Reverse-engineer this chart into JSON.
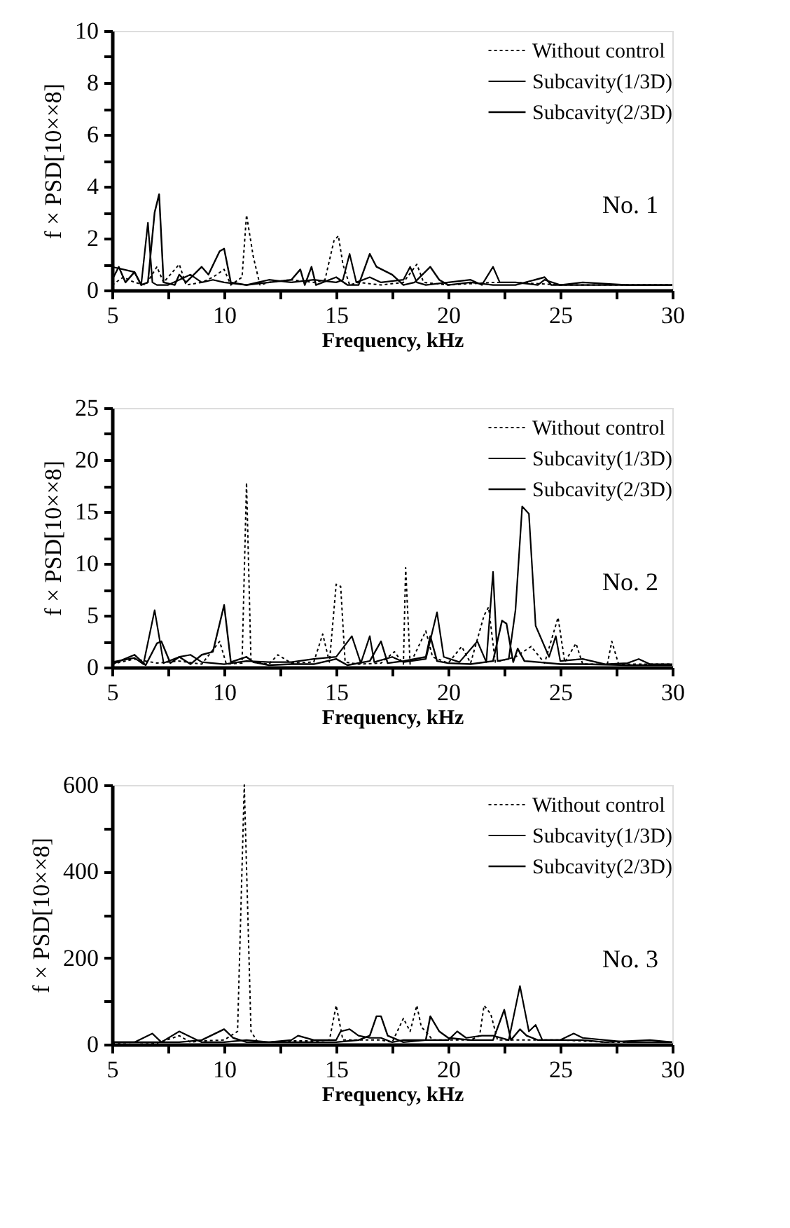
{
  "chart_data": [
    {
      "type": "line",
      "xlabel": "Frequency, kHz",
      "ylabel": "f × PSD[10××8]",
      "annotations": [
        "No. 1"
      ],
      "legend": "top right",
      "grid": false,
      "xlim": [
        5,
        30
      ],
      "xticks": [
        5,
        {
          "value": 7.5,
          "label": null
        },
        10,
        {
          "value": 12.5,
          "label": null
        },
        15,
        {
          "value": 17.5,
          "label": null
        },
        20,
        {
          "value": 22.5,
          "label": null
        },
        25,
        {
          "value": 27.5,
          "label": null
        },
        30
      ],
      "ylim": [
        0,
        10
      ],
      "yticks": [
        0,
        {
          "value": 1,
          "label": null
        },
        2,
        {
          "value": 3,
          "label": null
        },
        4,
        {
          "value": 5,
          "label": null
        },
        6,
        {
          "value": 7,
          "label": null
        },
        8,
        {
          "value": 9,
          "label": null
        },
        10
      ],
      "series": [
        {
          "name": "Without control",
          "color": "#000000",
          "line_style": "dotted",
          "x": [
            5,
            5.5,
            6,
            6.5,
            7,
            7.3,
            8,
            8.3,
            9,
            9.5,
            10,
            10.3,
            10.8,
            11,
            11.3,
            11.6,
            12,
            13,
            14,
            14.5,
            14.9,
            15.1,
            15.3,
            15.6,
            16,
            17,
            18,
            18.6,
            18.9,
            20,
            22,
            23,
            25,
            27,
            30
          ],
          "values": [
            0.2,
            0.5,
            0.3,
            0.2,
            0.9,
            0.3,
            1.0,
            0.2,
            0.3,
            0.5,
            0.8,
            0.2,
            0.5,
            2.9,
            1.3,
            0.2,
            0.3,
            0.4,
            0.3,
            0.4,
            1.9,
            2.1,
            1.0,
            0.2,
            0.3,
            0.2,
            0.3,
            1.0,
            0.3,
            0.2,
            0.3,
            0.3,
            0.2,
            0.2,
            0.2
          ]
        },
        {
          "name": "Subcavity(1/3D)",
          "color": "#000000",
          "line_style": "solid",
          "x": [
            5,
            5.5,
            6,
            6.3,
            6.6,
            6.8,
            7,
            7.5,
            8,
            8.5,
            9,
            9.5,
            10,
            11,
            11.5,
            12,
            13,
            14,
            15,
            15.3,
            15.6,
            15.9,
            16.5,
            17,
            18,
            18.3,
            18.6,
            19,
            20,
            21,
            21.5,
            22,
            22.3,
            23,
            24,
            24.3,
            25,
            26,
            28,
            30
          ],
          "values": [
            0.9,
            0.8,
            0.7,
            0.2,
            2.6,
            0.3,
            0.2,
            0.2,
            0.4,
            0.6,
            0.3,
            0.4,
            0.3,
            0.2,
            0.3,
            0.4,
            0.3,
            0.4,
            0.3,
            0.4,
            1.4,
            0.3,
            0.5,
            0.3,
            0.4,
            0.9,
            0.3,
            0.2,
            0.3,
            0.4,
            0.2,
            0.9,
            0.3,
            0.3,
            0.2,
            0.4,
            0.2,
            0.3,
            0.2,
            0.2
          ]
        },
        {
          "name": "Subcavity(2/3D)",
          "color": "#000000",
          "line_style": "solid",
          "x": [
            5,
            5.3,
            5.6,
            6,
            6.3,
            6.6,
            6.9,
            7.1,
            7.3,
            7.8,
            8,
            8.3,
            9,
            9.3,
            9.8,
            10,
            10.3,
            11,
            12,
            13,
            13.4,
            13.6,
            13.9,
            14.1,
            15,
            15.5,
            16,
            16.5,
            16.8,
            17.5,
            18,
            18.5,
            19.2,
            19.6,
            20,
            21,
            22,
            23,
            24.3,
            24.6,
            26,
            28,
            30
          ],
          "values": [
            0.4,
            0.9,
            0.3,
            0.7,
            0.2,
            0.3,
            3.0,
            3.7,
            0.3,
            0.2,
            0.6,
            0.3,
            0.9,
            0.6,
            1.5,
            1.6,
            0.3,
            0.2,
            0.3,
            0.4,
            0.8,
            0.2,
            0.9,
            0.2,
            0.5,
            0.2,
            0.2,
            1.4,
            0.9,
            0.6,
            0.2,
            0.3,
            0.9,
            0.4,
            0.2,
            0.3,
            0.2,
            0.2,
            0.5,
            0.2,
            0.2,
            0.2,
            0.2
          ]
        }
      ]
    },
    {
      "type": "line",
      "xlabel": "Frequency, kHz",
      "ylabel": "f × PSD[10××8]",
      "annotations": [
        "No. 2"
      ],
      "legend": "top right",
      "grid": false,
      "xlim": [
        5,
        30
      ],
      "xticks": [
        5,
        {
          "value": 7.5,
          "label": null
        },
        10,
        {
          "value": 12.5,
          "label": null
        },
        15,
        {
          "value": 17.5,
          "label": null
        },
        20,
        {
          "value": 22.5,
          "label": null
        },
        25,
        {
          "value": 27.5,
          "label": null
        },
        30
      ],
      "ylim": [
        0,
        25
      ],
      "yticks": [
        0,
        {
          "value": 2.5,
          "label": null
        },
        5,
        {
          "value": 7.5,
          "label": null
        },
        10,
        {
          "value": 12.5,
          "label": null
        },
        15,
        {
          "value": 17.5,
          "label": null
        },
        20,
        {
          "value": 22.5,
          "label": null
        },
        25
      ],
      "series": [
        {
          "name": "Without control",
          "color": "#000000",
          "line_style": "dotted",
          "x": [
            5,
            6,
            7,
            8,
            9,
            9.8,
            10.1,
            10.8,
            11,
            11.2,
            12,
            12.4,
            13,
            14,
            14.4,
            14.7,
            15,
            15.2,
            15.4,
            16,
            17,
            17.6,
            18,
            18.1,
            18.3,
            19,
            19.3,
            20,
            20.6,
            21,
            21.6,
            21.8,
            22.1,
            23,
            23.7,
            24.3,
            24.9,
            25.2,
            25.7,
            26,
            27.1,
            27.3,
            27.6,
            29,
            30
          ],
          "values": [
            0.3,
            0.8,
            0.4,
            0.6,
            0.3,
            2.5,
            0.3,
            0.4,
            17.8,
            0.5,
            0.3,
            1.2,
            0.4,
            0.5,
            3.2,
            0.5,
            8.0,
            7.8,
            0.5,
            0.3,
            0.4,
            1.5,
            0.3,
            9.6,
            0.3,
            3.5,
            1.0,
            0.4,
            2.0,
            0.4,
            5.0,
            5.8,
            0.5,
            1.0,
            2.0,
            0.4,
            4.8,
            0.5,
            2.3,
            0.3,
            0.3,
            2.5,
            0.3,
            0.3,
            0.3
          ]
        },
        {
          "name": "Subcavity(1/3D)",
          "color": "#000000",
          "line_style": "solid",
          "x": [
            5,
            6,
            6.4,
            6.9,
            7.3,
            8,
            8.5,
            9,
            10,
            11,
            12,
            13,
            14,
            15,
            15.7,
            16.1,
            16.5,
            16.7,
            17.5,
            18,
            19,
            19.5,
            19.8,
            20.5,
            21.3,
            21.7,
            22,
            22.2,
            22.7,
            23,
            23.3,
            23.6,
            23.9,
            24.5,
            24.8,
            25,
            26,
            27,
            28,
            28.5,
            29,
            30
          ],
          "values": [
            0.5,
            0.9,
            0.3,
            5.5,
            0.4,
            1.0,
            1.2,
            0.5,
            0.3,
            0.6,
            0.5,
            0.5,
            0.8,
            1.0,
            3.0,
            0.4,
            3.0,
            0.5,
            1.0,
            0.5,
            0.8,
            5.3,
            1.0,
            0.5,
            2.5,
            0.5,
            9.2,
            0.6,
            0.8,
            5.5,
            15.5,
            14.8,
            4.0,
            1.0,
            3.0,
            0.6,
            0.8,
            0.3,
            0.4,
            0.8,
            0.3,
            0.3
          ]
        },
        {
          "name": "Subcavity(2/3D)",
          "color": "#000000",
          "line_style": "solid",
          "x": [
            5,
            6,
            6.5,
            7,
            7.2,
            7.6,
            8,
            8.5,
            9,
            9.5,
            10,
            10.3,
            11,
            11.3,
            12,
            13,
            14,
            15,
            15.5,
            16.5,
            17,
            17.3,
            18,
            19,
            19.2,
            19.5,
            20,
            21,
            22,
            22.4,
            22.6,
            22.9,
            23.1,
            23.4,
            24,
            25,
            26,
            28,
            30
          ],
          "values": [
            0.3,
            1.2,
            0.2,
            2.3,
            2.5,
            0.4,
            1.0,
            0.3,
            1.2,
            1.5,
            6.0,
            0.5,
            1.0,
            0.5,
            0.2,
            0.3,
            0.3,
            0.8,
            0.2,
            0.6,
            2.5,
            0.4,
            0.6,
            1.0,
            3.0,
            0.6,
            0.4,
            0.3,
            0.6,
            4.5,
            4.2,
            0.5,
            1.8,
            0.6,
            0.5,
            0.3,
            0.3,
            0.2,
            0.2
          ]
        }
      ]
    },
    {
      "type": "line",
      "xlabel": "Frequency, kHz",
      "ylabel": "f × PSD[10××8]",
      "annotations": [
        "No. 3"
      ],
      "legend": "top right",
      "grid": false,
      "xlim": [
        5,
        30
      ],
      "xticks": [
        5,
        {
          "value": 7.5,
          "label": null
        },
        10,
        {
          "value": 12.5,
          "label": null
        },
        15,
        {
          "value": 17.5,
          "label": null
        },
        20,
        {
          "value": 22.5,
          "label": null
        },
        25,
        {
          "value": 27.5,
          "label": null
        },
        30
      ],
      "ylim": [
        0,
        600
      ],
      "yticks": [
        0,
        {
          "value": 100,
          "label": null
        },
        200,
        {
          "value": 300,
          "label": null
        },
        400,
        {
          "value": 500,
          "label": null
        },
        600
      ],
      "series": [
        {
          "name": "Without control",
          "color": "#000000",
          "line_style": "dotted",
          "x": [
            5,
            6,
            7,
            8,
            8.5,
            9,
            10,
            10.6,
            10.9,
            11.2,
            11.5,
            12,
            13,
            14,
            14.7,
            15,
            15.3,
            16,
            17,
            17.5,
            18,
            18.3,
            18.6,
            18.8,
            19,
            19.3,
            20,
            21,
            21.4,
            21.6,
            21.9,
            22.2,
            23,
            24,
            25,
            26,
            27,
            28,
            30
          ],
          "values": [
            3,
            5,
            3,
            20,
            5,
            8,
            10,
            30,
            600,
            30,
            5,
            5,
            8,
            8,
            10,
            90,
            10,
            10,
            10,
            5,
            60,
            30,
            90,
            40,
            30,
            10,
            10,
            10,
            20,
            90,
            70,
            10,
            10,
            10,
            10,
            8,
            5,
            5,
            5
          ]
        },
        {
          "name": "Subcavity(1/3D)",
          "color": "#000000",
          "line_style": "solid",
          "x": [
            5,
            6,
            6.8,
            7.2,
            8,
            8.4,
            9,
            10,
            11,
            12,
            13,
            13.3,
            14,
            15,
            15.2,
            15.6,
            16,
            16.5,
            17,
            17.5,
            18,
            19,
            20,
            20.4,
            20.8,
            21.5,
            22,
            22.7,
            23.2,
            23.6,
            23.9,
            24.2,
            25,
            25.6,
            26,
            27,
            28,
            29,
            30
          ],
          "values": [
            5,
            5,
            25,
            5,
            30,
            20,
            5,
            5,
            10,
            5,
            10,
            20,
            10,
            10,
            30,
            35,
            20,
            15,
            15,
            5,
            10,
            10,
            10,
            30,
            15,
            20,
            20,
            10,
            135,
            30,
            45,
            10,
            10,
            25,
            15,
            10,
            5,
            5,
            5
          ]
        },
        {
          "name": "Subcavity(2/3D)",
          "color": "#000000",
          "line_style": "solid",
          "x": [
            5,
            6,
            7,
            8,
            9,
            10,
            10.4,
            11,
            12,
            13,
            14,
            15,
            16,
            16.5,
            16.8,
            17,
            17.3,
            18,
            19,
            19.2,
            19.6,
            20,
            21,
            22,
            22.5,
            22.8,
            23.2,
            23.5,
            24,
            25,
            26,
            27,
            29,
            30
          ],
          "values": [
            5,
            5,
            5,
            5,
            10,
            35,
            15,
            5,
            5,
            5,
            5,
            5,
            10,
            20,
            65,
            65,
            20,
            5,
            10,
            65,
            30,
            15,
            10,
            10,
            80,
            10,
            35,
            20,
            10,
            10,
            10,
            5,
            10,
            5
          ]
        }
      ]
    }
  ]
}
